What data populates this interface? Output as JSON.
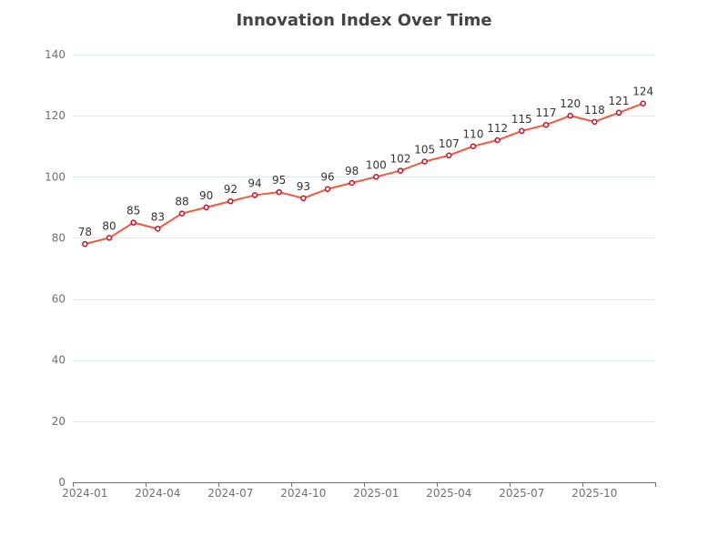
{
  "chart_data": {
    "type": "line",
    "title": "Innovation Index Over Time",
    "xlabel": "",
    "ylabel": "",
    "x": [
      "2024-01",
      "2024-02",
      "2024-03",
      "2024-04",
      "2024-05",
      "2024-06",
      "2024-07",
      "2024-08",
      "2024-09",
      "2024-10",
      "2024-11",
      "2024-12",
      "2025-01",
      "2025-02",
      "2025-03",
      "2025-04",
      "2025-05",
      "2025-06",
      "2025-07",
      "2025-08",
      "2025-09",
      "2025-10",
      "2025-11",
      "2025-12"
    ],
    "series": [
      {
        "values": [
          78,
          80,
          85,
          83,
          88,
          90,
          92,
          94,
          95,
          93,
          96,
          98,
          100,
          102,
          105,
          107,
          110,
          112,
          115,
          117,
          120,
          118,
          121,
          124
        ]
      }
    ],
    "x_tick_labels": [
      "2024-01",
      "2024-04",
      "2024-07",
      "2024-10",
      "2025-01",
      "2025-04",
      "2025-07",
      "2025-10"
    ],
    "y_ticks": [
      0,
      20,
      40,
      60,
      80,
      100,
      120,
      140
    ],
    "ylim": [
      0,
      140
    ],
    "grid": true,
    "legend": "none",
    "colors": {
      "line": "#ee5a3b",
      "marker_stroke": "#c8102e",
      "marker_fill": "#ffffff",
      "grid": "#e0e6f1",
      "axis": "#6e7079"
    }
  }
}
